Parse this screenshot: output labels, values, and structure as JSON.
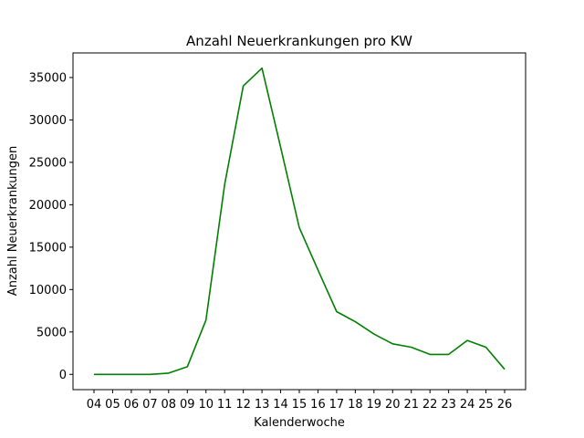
{
  "chart_data": {
    "type": "line",
    "title": "Anzahl Neuerkrankungen pro KW",
    "xlabel": "Kalenderwoche",
    "ylabel": "Anzahl Neuerkrankungen",
    "categories": [
      "04",
      "05",
      "06",
      "07",
      "08",
      "09",
      "10",
      "11",
      "12",
      "13",
      "14",
      "15",
      "16",
      "17",
      "18",
      "19",
      "20",
      "21",
      "22",
      "23",
      "24",
      "25",
      "26"
    ],
    "series": [
      {
        "values": [
          0,
          0,
          0,
          0,
          150,
          900,
          6400,
          22400,
          34000,
          36100,
          26800,
          17300,
          12300,
          7400,
          6200,
          4750,
          3600,
          3200,
          2350,
          2350,
          4000,
          3200,
          600
        ],
        "color": "#008000"
      }
    ],
    "yticks": [
      0,
      5000,
      10000,
      15000,
      20000,
      25000,
      30000,
      35000
    ],
    "ylim": [
      -1800,
      37900
    ],
    "grid": false,
    "legend": "none"
  }
}
